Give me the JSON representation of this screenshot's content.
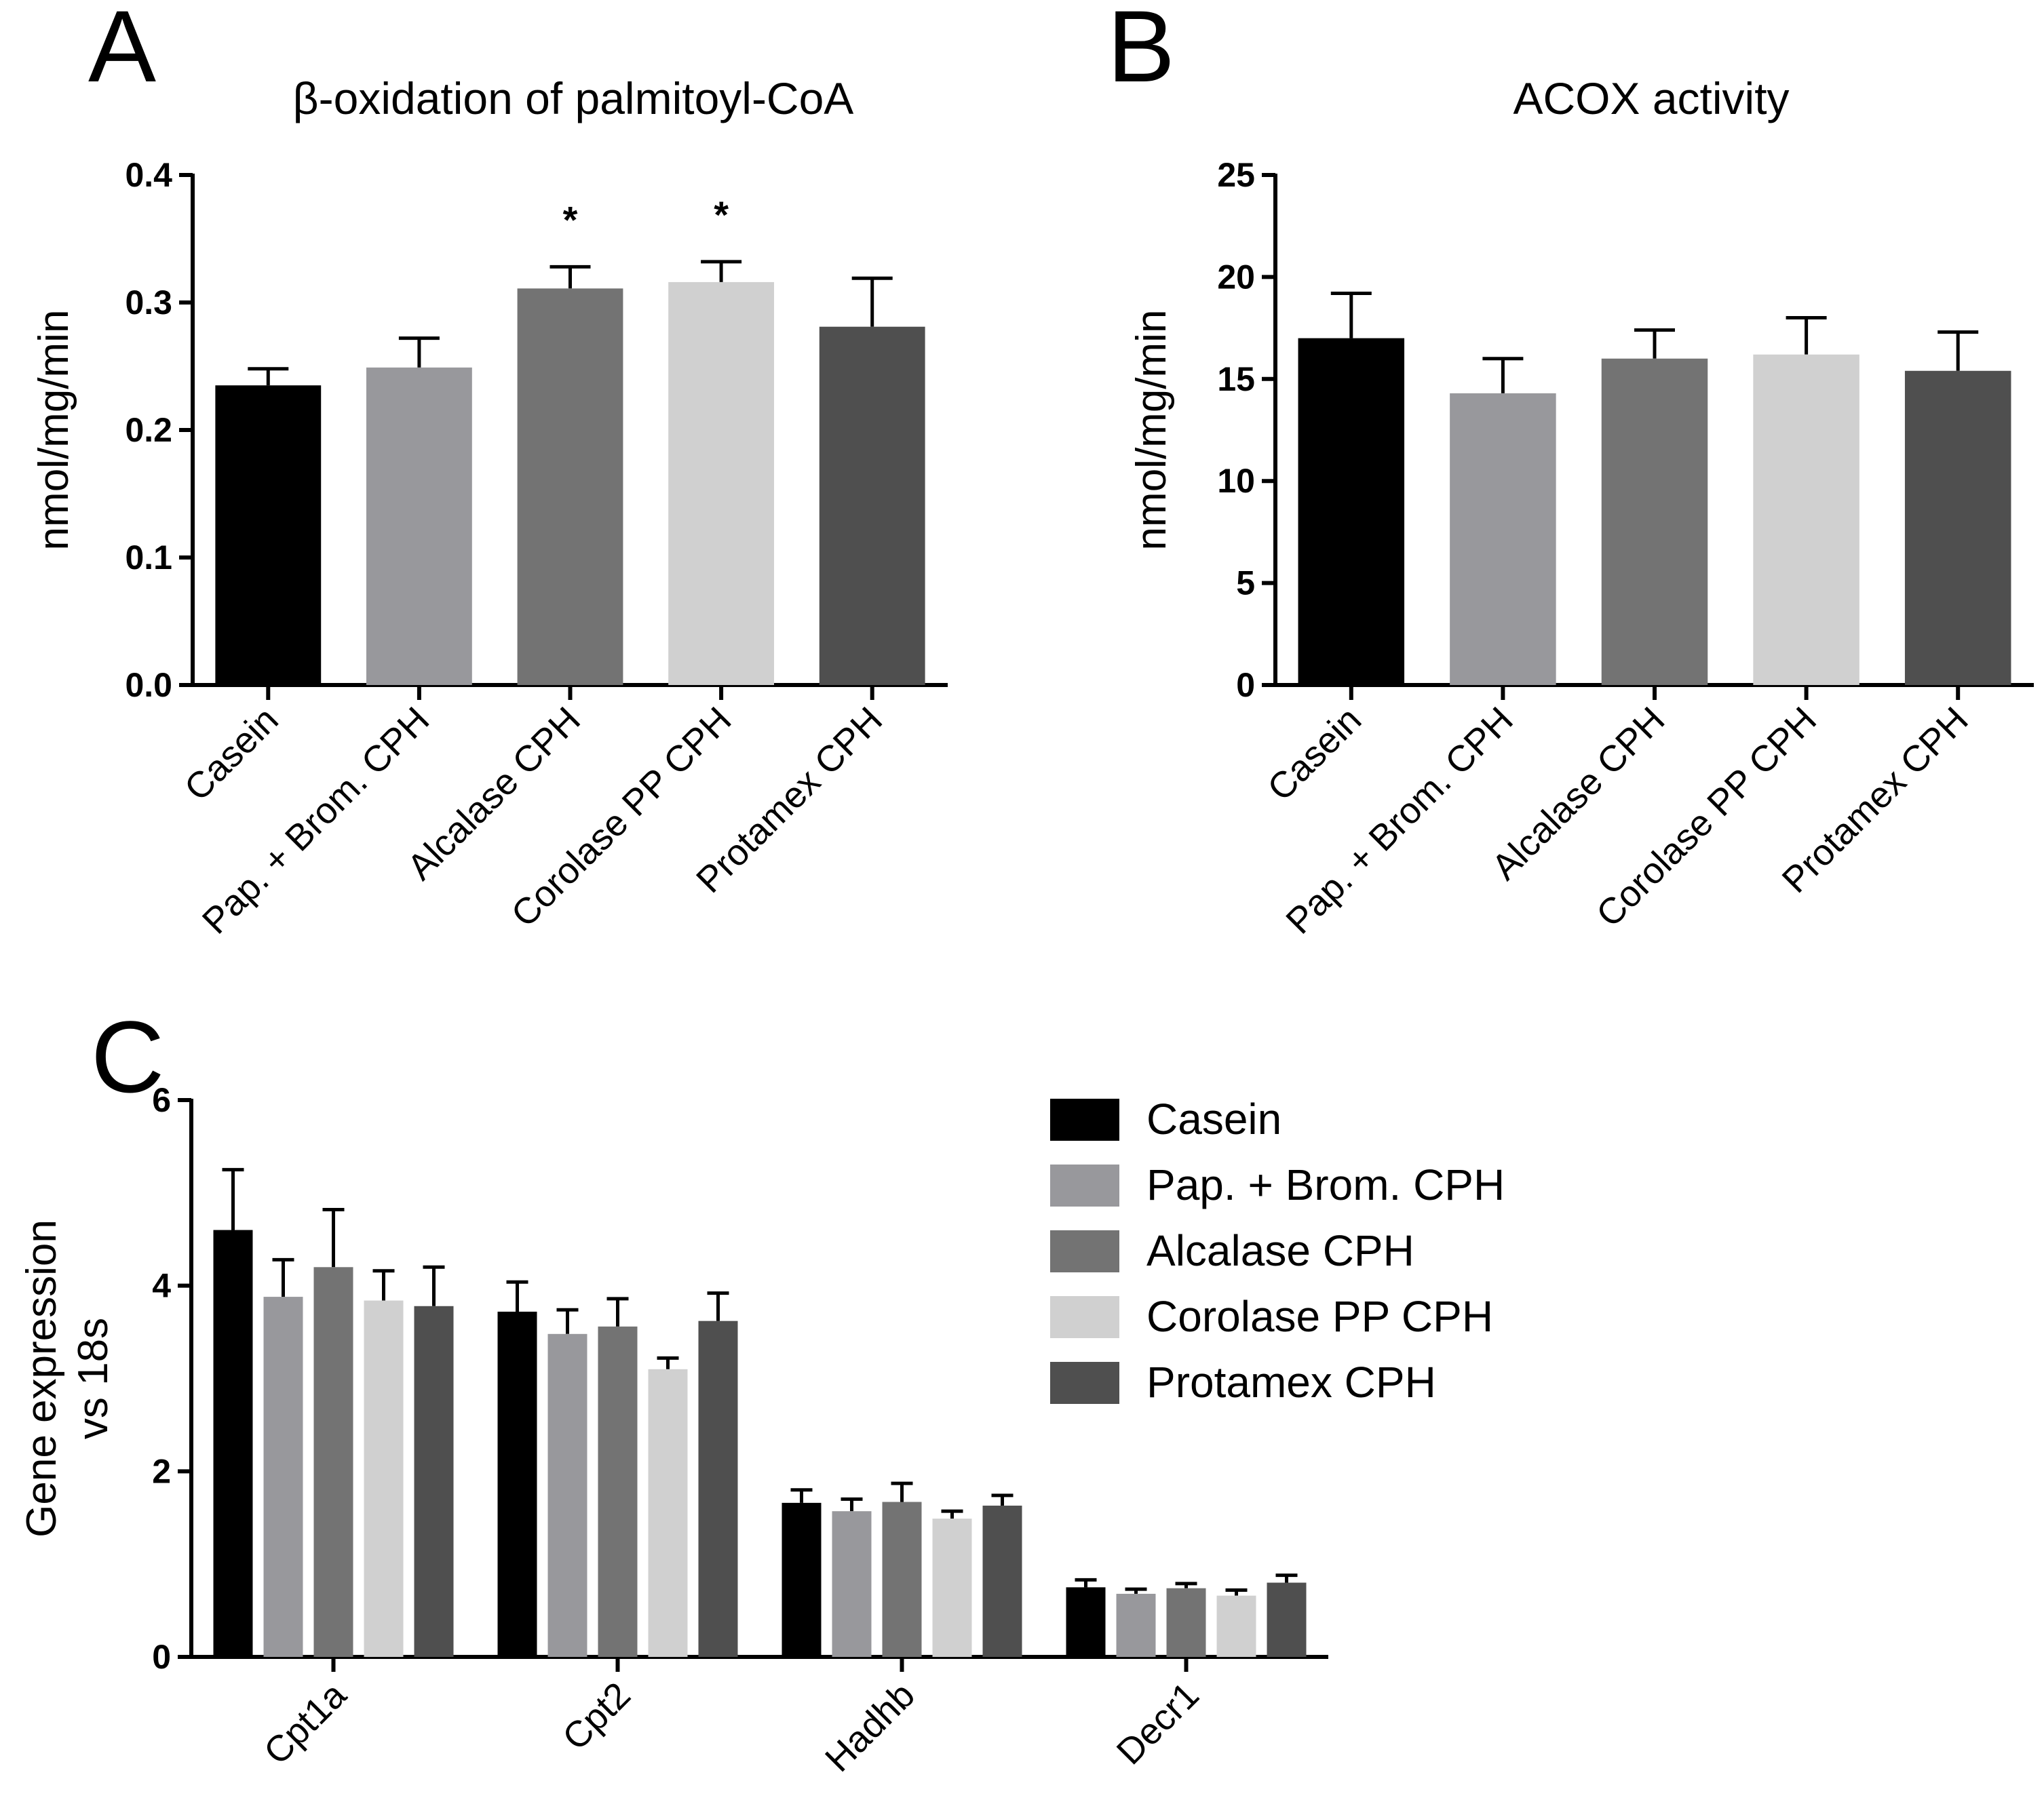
{
  "panels": {
    "a": "A",
    "b": "B",
    "c": "C"
  },
  "colors": {
    "Casein": "#000000",
    "Pap. + Brom. CPH": "#98989c",
    "Alcalase CPH": "#737373",
    "Corolase PP CPH": "#d0d0d0",
    "Protamex CPH": "#4f4f4f"
  },
  "legend": {
    "items": [
      "Casein",
      "Pap. + Brom. CPH",
      "Alcalase CPH",
      "Corolase PP CPH",
      "Protamex CPH"
    ]
  },
  "chart_data": [
    {
      "id": "A",
      "type": "bar",
      "title": "β-oxidation of palmitoyl-CoA",
      "xlabel": "",
      "ylabel": "nmol/mg/min",
      "ylim": [
        0,
        0.4
      ],
      "yticks": [
        "0.0",
        "0.1",
        "0.2",
        "0.3",
        "0.4"
      ],
      "categories": [
        "Casein",
        "Pap. + Brom. CPH",
        "Alcalase CPH",
        "Corolase PP CPH",
        "Protamex CPH"
      ],
      "values": [
        0.235,
        0.249,
        0.311,
        0.316,
        0.281
      ],
      "errors": [
        0.013,
        0.023,
        0.017,
        0.016,
        0.038
      ],
      "annotations": [
        "",
        "",
        "*",
        "*",
        ""
      ]
    },
    {
      "id": "B",
      "type": "bar",
      "title": "ACOX activity",
      "xlabel": "",
      "ylabel": "nmol/mg/min",
      "ylim": [
        0,
        25
      ],
      "yticks": [
        "0",
        "5",
        "10",
        "15",
        "20",
        "25"
      ],
      "categories": [
        "Casein",
        "Pap. + Brom. CPH",
        "Alcalase CPH",
        "Corolase PP CPH",
        "Protamex CPH"
      ],
      "values": [
        17.0,
        14.3,
        16.0,
        16.2,
        15.4
      ],
      "errors": [
        2.2,
        1.7,
        1.4,
        1.8,
        1.9
      ],
      "annotations": [
        "",
        "",
        "",
        "",
        ""
      ]
    },
    {
      "id": "C",
      "type": "bar",
      "title": "",
      "xlabel": "",
      "ylabel": [
        "Gene expression",
        "vs 18s"
      ],
      "ylim": [
        0,
        6
      ],
      "yticks": [
        "0",
        "2",
        "4",
        "6"
      ],
      "categories": [
        "Cpt1a",
        "Cpt2",
        "Hadhb",
        "Decr1"
      ],
      "series": [
        {
          "name": "Casein",
          "values": [
            4.6,
            3.72,
            1.66,
            0.75
          ],
          "errors": [
            0.65,
            0.32,
            0.14,
            0.08
          ]
        },
        {
          "name": "Pap. + Brom. CPH",
          "values": [
            3.88,
            3.48,
            1.57,
            0.68
          ],
          "errors": [
            0.4,
            0.26,
            0.13,
            0.05
          ]
        },
        {
          "name": "Alcalase CPH",
          "values": [
            4.2,
            3.56,
            1.67,
            0.74
          ],
          "errors": [
            0.62,
            0.3,
            0.2,
            0.05
          ]
        },
        {
          "name": "Corolase PP CPH",
          "values": [
            3.84,
            3.1,
            1.49,
            0.66
          ],
          "errors": [
            0.32,
            0.12,
            0.08,
            0.06
          ]
        },
        {
          "name": "Protamex CPH",
          "values": [
            3.78,
            3.62,
            1.63,
            0.8
          ],
          "errors": [
            0.42,
            0.3,
            0.11,
            0.08
          ]
        }
      ],
      "legend_position": "top-right"
    }
  ]
}
